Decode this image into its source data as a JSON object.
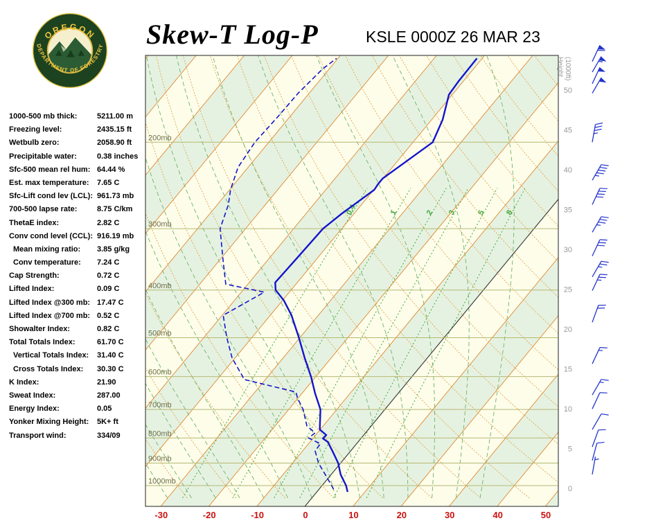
{
  "header": {
    "title": "Skew-T Log-P",
    "station_time": "KSLE 0000Z 26 MAR 23",
    "logo": {
      "top_text": "OREGON",
      "bottom_text": "DEPARTMENT OF FORESTRY"
    }
  },
  "stats": {
    "rows": [
      {
        "label": "1000-500 mb thick:",
        "value": "5211.00 m",
        "indent": false
      },
      {
        "label": "Freezing level:",
        "value": "2435.15 ft",
        "indent": false
      },
      {
        "label": "Wetbulb zero:",
        "value": "2058.90 ft",
        "indent": false
      },
      {
        "label": "Precipitable water:",
        "value": "0.38 inches",
        "indent": false
      },
      {
        "label": "Sfc-500 mean rel hum:",
        "value": "64.44 %",
        "indent": false
      },
      {
        "label": "Est. max temperature:",
        "value": "7.65 C",
        "indent": false
      },
      {
        "label": "Sfc-Lift cond lev (LCL):",
        "value": "961.73 mb",
        "indent": false
      },
      {
        "label": "700-500 lapse rate:",
        "value": "8.75 C/km",
        "indent": false
      },
      {
        "label": "ThetaE index:",
        "value": "2.82 C",
        "indent": false
      },
      {
        "label": "Conv cond level (CCL):",
        "value": "916.19 mb",
        "indent": false
      },
      {
        "label": "Mean mixing ratio:",
        "value": "3.85 g/kg",
        "indent": true
      },
      {
        "label": "Conv temperature:",
        "value": "7.24 C",
        "indent": true
      },
      {
        "label": "Cap Strength:",
        "value": "0.72 C",
        "indent": false
      },
      {
        "label": "Lifted Index:",
        "value": "0.09 C",
        "indent": false
      },
      {
        "label": "Lifted Index @300 mb:",
        "value": "17.47 C",
        "indent": false
      },
      {
        "label": "Lifted Index @700 mb:",
        "value": "0.52 C",
        "indent": false
      },
      {
        "label": "Showalter Index:",
        "value": "0.82 C",
        "indent": false
      },
      {
        "label": "Total Totals Index:",
        "value": "61.70 C",
        "indent": false
      },
      {
        "label": "Vertical Totals Index:",
        "value": "31.40 C",
        "indent": true
      },
      {
        "label": "Cross Totals Index:",
        "value": "30.30 C",
        "indent": true
      },
      {
        "label": "K Index:",
        "value": "21.90",
        "indent": false
      },
      {
        "label": "Sweat Index:",
        "value": "287.00",
        "indent": false
      },
      {
        "label": "Energy Index:",
        "value": "0.05",
        "indent": false
      },
      {
        "label": "Yonker Mixing Height:",
        "value": "5K+ ft",
        "indent": false
      },
      {
        "label": "Transport wind:",
        "value": "334/09",
        "indent": false
      }
    ]
  },
  "chart_data": {
    "type": "skewt-logp",
    "title": "Skew-T Log-P",
    "station_time": "KSLE 0000Z 26 MAR 23",
    "pressure_levels_mb": [
      200,
      300,
      400,
      500,
      600,
      700,
      800,
      900,
      1000
    ],
    "pressure_label_suffix": "mb",
    "pressure_range_mb": [
      133,
      1098
    ],
    "temp_ticks_c": [
      -30,
      -20,
      -10,
      0,
      10,
      20,
      30,
      40,
      50
    ],
    "temp_range_bottom_c": [
      -33,
      53
    ],
    "isotherm_step_c": 10,
    "height_ticks_kft": [
      0,
      5,
      10,
      15,
      20,
      25,
      30,
      35,
      40,
      45,
      50
    ],
    "height_axis_title_line1": "Height",
    "height_axis_title_line2": "(1000ft)",
    "mixing_ratio_values_gkg": [
      0.4,
      1,
      2,
      3,
      5,
      8
    ],
    "dry_adiabats_c": {
      "from": -30,
      "to": 180,
      "step": 10
    },
    "moist_adiabats_c": {
      "from": -30,
      "to": 35,
      "step": 5
    },
    "temperature_profile_p_t": [
      [
        1030,
        6.4
      ],
      [
        1000,
        5.0
      ],
      [
        950,
        2.0
      ],
      [
        900,
        -0.5
      ],
      [
        850,
        -3.8
      ],
      [
        815,
        -6.3
      ],
      [
        802,
        -7.9
      ],
      [
        789,
        -7.8
      ],
      [
        769,
        -10.1
      ],
      [
        700,
        -13.4
      ],
      [
        650,
        -17.2
      ],
      [
        600,
        -21.0
      ],
      [
        550,
        -25.5
      ],
      [
        500,
        -30.2
      ],
      [
        450,
        -35.6
      ],
      [
        420,
        -39.7
      ],
      [
        400,
        -43.2
      ],
      [
        386,
        -44.6
      ],
      [
        350,
        -44.3
      ],
      [
        300,
        -43.9
      ],
      [
        280,
        -42.6
      ],
      [
        250,
        -39.9
      ],
      [
        243,
        -40.1
      ],
      [
        237,
        -40.1
      ],
      [
        200,
        -35.9
      ],
      [
        180,
        -37.7
      ],
      [
        160,
        -40.7
      ],
      [
        150,
        -41.0
      ],
      [
        135,
        -41.1
      ]
    ],
    "dewpoint_profile_p_t": [
      [
        1017,
        3.0
      ],
      [
        1000,
        2.0
      ],
      [
        950,
        -1.2
      ],
      [
        900,
        -4.6
      ],
      [
        850,
        -7.4
      ],
      [
        822,
        -7.5
      ],
      [
        800,
        -11.0
      ],
      [
        781,
        -10.5
      ],
      [
        756,
        -13.4
      ],
      [
        700,
        -17.0
      ],
      [
        665,
        -20.0
      ],
      [
        645,
        -21.5
      ],
      [
        608,
        -34.5
      ],
      [
        600,
        -35.2
      ],
      [
        550,
        -40.6
      ],
      [
        500,
        -45.2
      ],
      [
        450,
        -49.8
      ],
      [
        404,
        -45.2
      ],
      [
        389,
        -54.6
      ],
      [
        350,
        -59.0
      ],
      [
        300,
        -65.3
      ],
      [
        268,
        -67.7
      ],
      [
        250,
        -69.8
      ],
      [
        225,
        -72.1
      ],
      [
        200,
        -72.9
      ],
      [
        178,
        -72.5
      ],
      [
        159,
        -72.3
      ],
      [
        142,
        -71.4
      ],
      [
        135,
        -70.3
      ]
    ],
    "wind_barbs_p_dir_spd": [
      [
        137,
        25,
        60
      ],
      [
        144,
        30,
        55
      ],
      [
        152,
        25,
        50
      ],
      [
        159,
        30,
        50
      ],
      [
        200,
        10,
        35
      ],
      [
        239,
        30,
        45
      ],
      [
        268,
        25,
        40
      ],
      [
        305,
        30,
        35
      ],
      [
        341,
        25,
        30
      ],
      [
        376,
        30,
        25
      ],
      [
        401,
        25,
        25
      ],
      [
        465,
        20,
        20
      ],
      [
        565,
        25,
        15
      ],
      [
        654,
        30,
        15
      ],
      [
        698,
        25,
        10
      ],
      [
        769,
        30,
        10
      ],
      [
        834,
        20,
        10
      ],
      [
        889,
        15,
        10
      ],
      [
        949,
        10,
        5
      ]
    ],
    "colors": {
      "band_cream": "#fdfdea",
      "band_green": "#e5f2e1",
      "isotherm_orange": "#e08830",
      "dry_adiabat_orange": "#e2a34a",
      "moist_adiabat_green": "#6fb26a",
      "mixing_ratio_green": "#3da83d",
      "zero_isotherm": "#333333",
      "pressure_line": "#b7b873",
      "pressure_label": "#6f6f4a",
      "trace_blue": "#1414cc",
      "temp_label_red": "#cc1111",
      "height_label_gray": "#999999",
      "barb_blue": "#2233cc"
    }
  }
}
